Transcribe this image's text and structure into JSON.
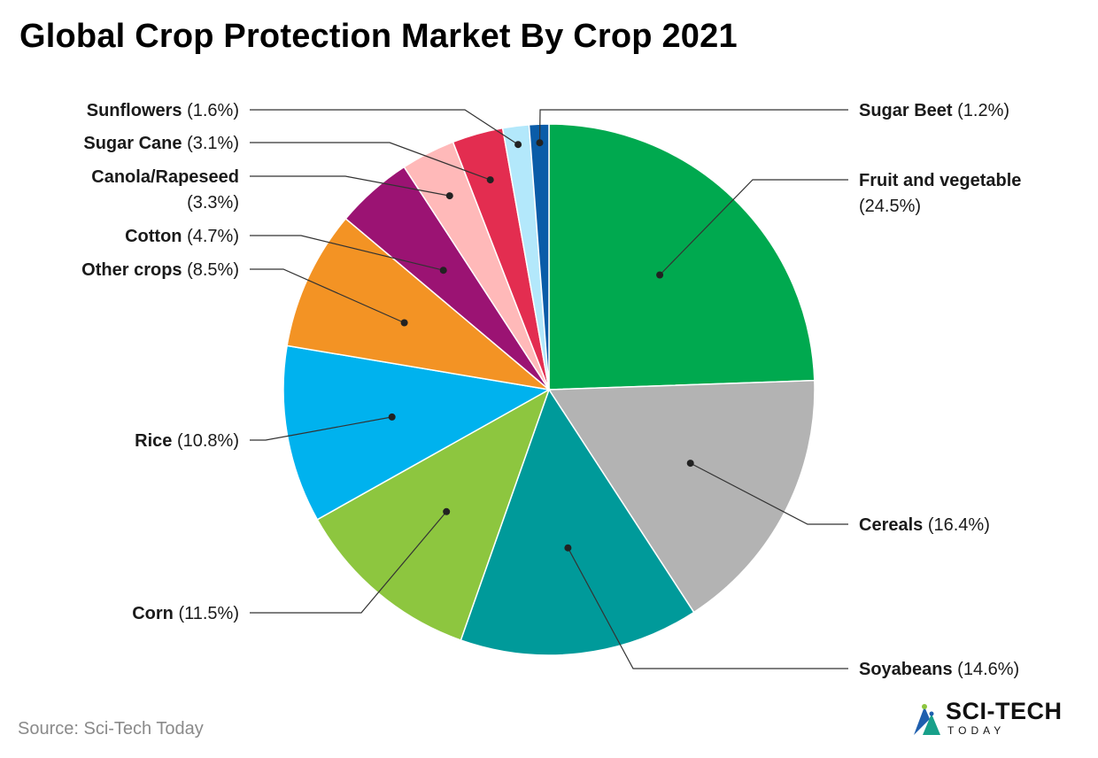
{
  "title": "Global Crop Protection Market By Crop 2021",
  "source": "Source: Sci-Tech Today",
  "brand": {
    "name": "SCI-TECH",
    "sub": "TODAY"
  },
  "chart_data": {
    "type": "pie",
    "title": "Global Crop Protection Market By Crop 2021",
    "slices": [
      {
        "name": "Fruit and vegetable",
        "value": 24.5,
        "label": "(24.5%)",
        "color": "#00A94F"
      },
      {
        "name": "Cereals",
        "value": 16.4,
        "label": "(16.4%)",
        "color": "#B3B3B3"
      },
      {
        "name": "Soyabeans",
        "value": 14.6,
        "label": "(14.6%)",
        "color": "#009A9A"
      },
      {
        "name": "Corn",
        "value": 11.5,
        "label": "(11.5%)",
        "color": "#8DC63F"
      },
      {
        "name": "Rice",
        "value": 10.8,
        "label": "(10.8%)",
        "color": "#00B2EE"
      },
      {
        "name": "Other crops",
        "value": 8.5,
        "label": "(8.5%)",
        "color": "#F39324"
      },
      {
        "name": "Cotton",
        "value": 4.7,
        "label": "(4.7%)",
        "color": "#9B1373"
      },
      {
        "name": "Canola/Rapeseed",
        "value": 3.3,
        "label": "(3.3%)",
        "color": "#FFB9B9"
      },
      {
        "name": "Sugar Cane",
        "value": 3.1,
        "label": "(3.1%)",
        "color": "#E32D50"
      },
      {
        "name": "Sunflowers",
        "value": 1.6,
        "label": "(1.6%)",
        "color": "#B3E8FB"
      },
      {
        "name": "Sugar Beet",
        "value": 1.2,
        "label": "(1.2%)",
        "color": "#0A5CA8"
      }
    ]
  }
}
